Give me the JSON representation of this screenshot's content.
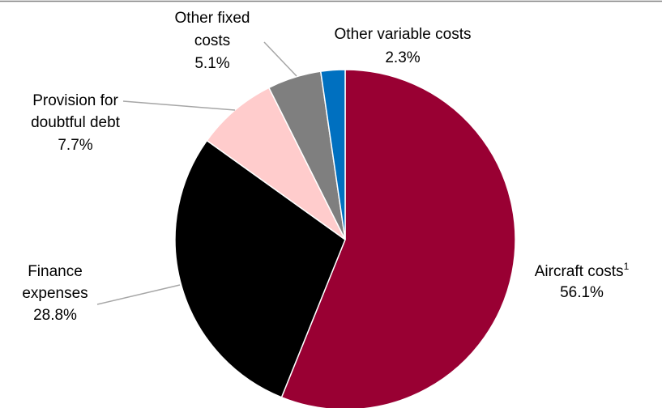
{
  "chart_data": {
    "type": "pie",
    "title": "",
    "start_angle": "12 o'clock",
    "direction": "clockwise",
    "legend": "none",
    "slices": [
      {
        "name": "Aircraft costs",
        "superscript": "1",
        "value": 56.1,
        "label": "56.1%",
        "color": "#990033"
      },
      {
        "name": "Finance expenses",
        "value": 28.8,
        "label": "28.8%",
        "color": "#000000"
      },
      {
        "name": "Provision for doubtful debt",
        "value": 7.7,
        "label": "7.7%",
        "color": "#ffcccc"
      },
      {
        "name": "Other fixed costs",
        "value": 5.1,
        "label": "5.1%",
        "color": "#7f7f7f"
      },
      {
        "name": "Other variable costs",
        "value": 2.3,
        "label": "2.3%",
        "color": "#0070c0"
      }
    ]
  }
}
